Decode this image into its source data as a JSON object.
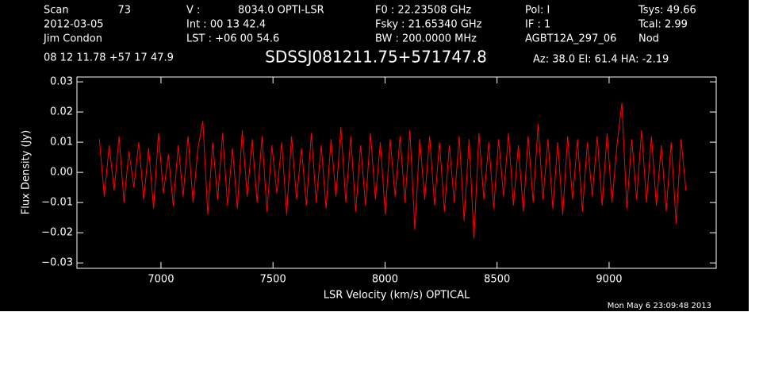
{
  "chart_data": {
    "type": "line",
    "title": "SDSSJ081211.75+571747.8",
    "header": [
      "Scan",
      "73",
      "2012-03-05",
      "Jim Condon",
      "08 12 11.78  +57 17 47.9",
      "V   :",
      "8034.0 OPTI-LSR",
      "Int  :  00 13 42.4",
      "LST : +06 00 54.6",
      "F0   :  22.23508 GHz",
      "Fsky :  21.65340 GHz",
      "BW   : 200.0000 MHz",
      "Pol:     I",
      "IF :      1",
      "AGBT12A_297_06",
      "Tsys:    49.66",
      "Tcal:       2.99",
      "Nod",
      "Az:  38.0   El:  61.4   HA: -2.19"
    ],
    "timestamp": "Mon May  6 23:09:48 2013",
    "x_label": "LSR Velocity (km/s) OPTICAL",
    "y_label": "Flux Density (Jy)",
    "color": "#ff0000",
    "x": [
      6725,
      6747,
      6769,
      6791,
      6813,
      6835,
      6857,
      6879,
      6901,
      6923,
      6945,
      6967,
      6989,
      7011,
      7033,
      7055,
      7077,
      7099,
      7121,
      7143,
      7165,
      7187,
      7209,
      7231,
      7253,
      7275,
      7297,
      7319,
      7341,
      7363,
      7385,
      7407,
      7429,
      7451,
      7473,
      7495,
      7517,
      7539,
      7561,
      7583,
      7605,
      7627,
      7649,
      7671,
      7693,
      7715,
      7737,
      7759,
      7781,
      7803,
      7825,
      7847,
      7869,
      7891,
      7913,
      7935,
      7957,
      7979,
      8001,
      8023,
      8045,
      8067,
      8089,
      8111,
      8133,
      8155,
      8177,
      8199,
      8221,
      8243,
      8265,
      8287,
      8309,
      8331,
      8353,
      8375,
      8397,
      8419,
      8441,
      8463,
      8485,
      8507,
      8529,
      8551,
      8573,
      8595,
      8617,
      8639,
      8661,
      8683,
      8705,
      8727,
      8749,
      8771,
      8793,
      8815,
      8837,
      8859,
      8881,
      8903,
      8925,
      8947,
      8969,
      8991,
      9013,
      9035,
      9057,
      9079,
      9101,
      9123,
      9145,
      9167,
      9189,
      9211,
      9233,
      9255,
      9277,
      9299,
      9321,
      9343
    ],
    "values": [
      0.011,
      -0.008,
      0.009,
      -0.006,
      0.012,
      -0.01,
      0.007,
      -0.005,
      0.01,
      -0.009,
      0.008,
      -0.012,
      0.013,
      -0.007,
      0.006,
      -0.011,
      0.009,
      -0.008,
      0.012,
      -0.01,
      0.008,
      0.017,
      -0.014,
      0.01,
      -0.009,
      0.013,
      -0.011,
      0.008,
      -0.012,
      0.014,
      -0.008,
      0.011,
      -0.01,
      0.012,
      -0.013,
      0.009,
      -0.007,
      0.01,
      -0.014,
      0.012,
      -0.009,
      0.008,
      -0.011,
      0.013,
      -0.01,
      0.009,
      -0.012,
      0.011,
      -0.008,
      0.015,
      -0.01,
      0.012,
      -0.013,
      0.009,
      -0.011,
      0.013,
      -0.009,
      0.01,
      -0.014,
      0.011,
      -0.008,
      0.012,
      -0.01,
      0.014,
      -0.019,
      0.011,
      -0.009,
      0.012,
      -0.011,
      0.01,
      -0.013,
      0.009,
      -0.01,
      0.012,
      -0.016,
      0.011,
      -0.022,
      0.013,
      -0.009,
      0.01,
      -0.012,
      0.011,
      -0.008,
      0.013,
      -0.011,
      0.009,
      -0.013,
      0.012,
      -0.01,
      0.016,
      -0.009,
      0.011,
      -0.012,
      0.01,
      -0.014,
      0.012,
      -0.009,
      0.011,
      -0.013,
      0.01,
      -0.008,
      0.012,
      -0.011,
      0.013,
      -0.01,
      0.009,
      0.023,
      -0.012,
      0.011,
      -0.009,
      0.014,
      -0.01,
      0.012,
      -0.011,
      0.009,
      -0.013,
      0.01,
      -0.017,
      0.011,
      -0.006
    ],
    "xlim": [
      6625,
      9478
    ],
    "ylim": [
      -0.0318,
      0.0316
    ],
    "xticks": [
      7000,
      7500,
      8000,
      8500,
      9000
    ],
    "yticks": [
      0.03,
      0.02,
      0.01,
      {
        "value": 0,
        "label": "0.00"
      },
      {
        "value": -0.01,
        "label": "−0.01"
      },
      {
        "value": -0.02,
        "label": "−0.02"
      },
      {
        "value": -0.03,
        "label": "−0.03"
      }
    ]
  }
}
